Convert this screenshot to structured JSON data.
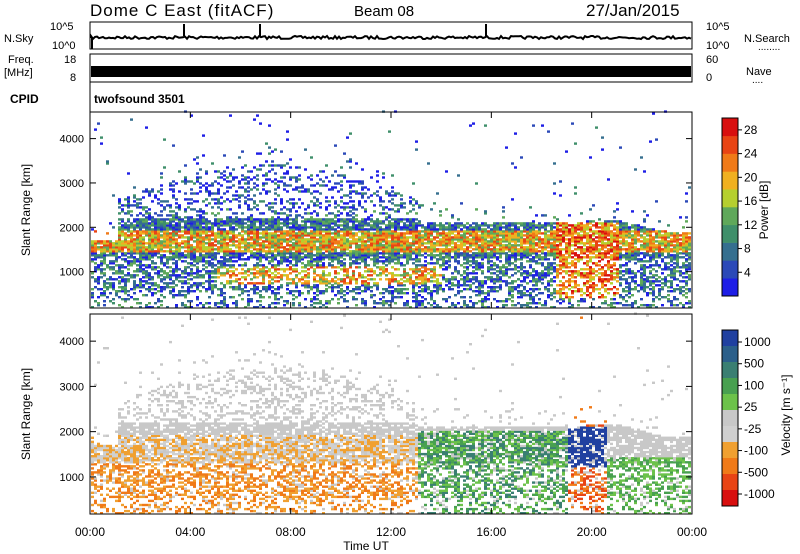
{
  "header": {
    "station": "Dome C East (fitACF)",
    "beam": "Beam 08",
    "date": "27/Jan/2015"
  },
  "top_panels": {
    "nsky_label": "N.Sky",
    "nsearch_label": "N.Search",
    "nsearch_dots": "........",
    "freq_label": "Freq.",
    "freq_unit": "[MHz]",
    "nave_label": "Nave",
    "nave_dots": "....",
    "cpid_label": "CPID",
    "cpid_value": "twofsound 3501",
    "noise_ticks_left": [
      "10^5",
      "10^0"
    ],
    "noise_ticks_right": [
      "10^5",
      "10^0"
    ],
    "freq_ticks_left": [
      "18",
      "8"
    ],
    "freq_ticks_right": [
      "60",
      "0"
    ]
  },
  "colors": {
    "power_scale": [
      "#1e1ee6",
      "#2b49b8",
      "#356f8f",
      "#3f8f6a",
      "#5fa85a",
      "#b5cf2f",
      "#f0b020",
      "#f07a18",
      "#e84414",
      "#d80f0f"
    ],
    "velocity_scale": [
      "#2040a0",
      "#2b5f8a",
      "#3a7f72",
      "#48a050",
      "#6cc24a",
      "#c8c8c8",
      "#d0d0d0",
      "#f0a030",
      "#f07a18",
      "#e84414",
      "#d80f0f"
    ]
  },
  "chart_data": [
    {
      "type": "heatmap",
      "name": "power",
      "xlabel": "Time UT",
      "ylabel": "Slant Range [km]",
      "x_ticks": [
        "00:00",
        "04:00",
        "08:00",
        "12:00",
        "16:00",
        "20:00",
        "00:00"
      ],
      "y_ticks": [
        1000,
        2000,
        3000,
        4000
      ],
      "xlim_hours": [
        0,
        24
      ],
      "ylim_km": [
        180,
        4600
      ],
      "colorbar": {
        "label": "Power [dB]",
        "ticks": [
          4,
          8,
          12,
          16,
          20,
          24,
          28
        ],
        "range": [
          0,
          30
        ]
      }
    },
    {
      "type": "heatmap",
      "name": "velocity",
      "xlabel": "Time UT",
      "ylabel": "Slant Range [km]",
      "x_ticks": [
        "00:00",
        "04:00",
        "08:00",
        "12:00",
        "16:00",
        "20:00",
        "00:00"
      ],
      "y_ticks": [
        1000,
        2000,
        3000,
        4000
      ],
      "xlim_hours": [
        0,
        24
      ],
      "ylim_km": [
        180,
        4600
      ],
      "colorbar": {
        "label": "Velocity [m s⁻¹]",
        "ticks": [
          1000,
          500,
          100,
          25,
          -25,
          -100,
          -500,
          -1000
        ]
      }
    }
  ]
}
